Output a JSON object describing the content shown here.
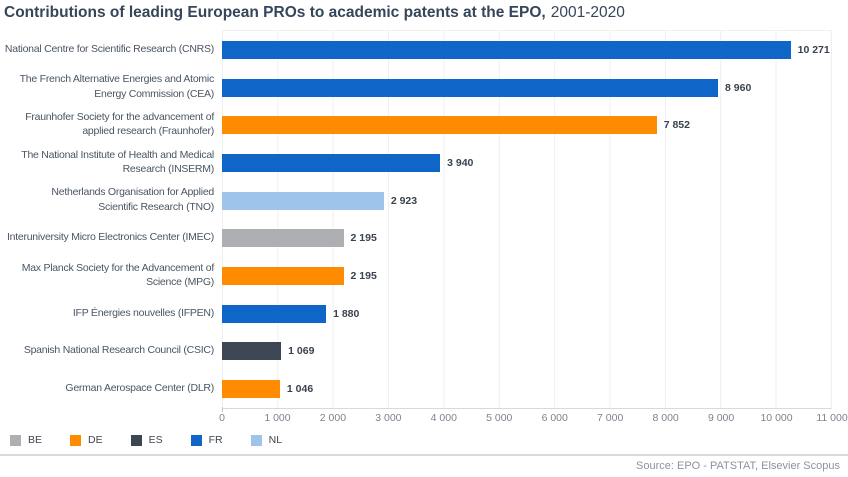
{
  "title": {
    "main": "Contributions of leading European PROs to academic patents at the EPO,",
    "period": "2001-2020"
  },
  "source": "Source: EPO - PATSTAT, Elsevier Scopus",
  "colors": {
    "BE": "#ADAFB2",
    "DE": "#FF8C00",
    "ES": "#3D4653",
    "FR": "#1065C8",
    "NL": "#9EC4EB"
  },
  "legend": [
    "BE",
    "DE",
    "ES",
    "FR",
    "NL"
  ],
  "chart_data": {
    "type": "bar",
    "orientation": "horizontal",
    "title": "Contributions of leading European PROs to academic patents at the EPO, 2001-2020",
    "xlabel": "",
    "ylabel": "",
    "xlim": [
      0,
      11000
    ],
    "x_ticks": [
      0,
      1000,
      2000,
      3000,
      4000,
      5000,
      6000,
      7000,
      8000,
      9000,
      10000,
      11000
    ],
    "x_tick_labels": [
      "0",
      "1 000",
      "2 000",
      "3 000",
      "4 000",
      "5 000",
      "6 000",
      "7 000",
      "8 000",
      "9 000",
      "10 000",
      "11 000"
    ],
    "grid": "vertical",
    "legend_position": "bottom-left",
    "rows": [
      {
        "label": "National Centre for Scientific Research (CNRS)",
        "country": "FR",
        "value": 10271,
        "value_label": "10 271"
      },
      {
        "label": "The French Alternative Energies and Atomic\nEnergy Commission (CEA)",
        "country": "FR",
        "value": 8960,
        "value_label": "8 960"
      },
      {
        "label": "Fraunhofer Society for the advancement of\napplied research (Fraunhofer)",
        "country": "DE",
        "value": 7852,
        "value_label": "7 852"
      },
      {
        "label": "The National Institute of Health and Medical\nResearch (INSERM)",
        "country": "FR",
        "value": 3940,
        "value_label": "3 940"
      },
      {
        "label": "Netherlands Organisation for Applied\nScientific Research (TNO)",
        "country": "NL",
        "value": 2923,
        "value_label": "2 923"
      },
      {
        "label": "Interuniversity Micro Electronics Center (IMEC)",
        "country": "BE",
        "value": 2195,
        "value_label": "2 195"
      },
      {
        "label": "Max Planck Society for the Advancement of\nScience (MPG)",
        "country": "DE",
        "value": 2195,
        "value_label": "2 195"
      },
      {
        "label": "IFP Énergies nouvelles (IFPEN)",
        "country": "FR",
        "value": 1880,
        "value_label": "1 880"
      },
      {
        "label": "Spanish National Research Council (CSIC)",
        "country": "ES",
        "value": 1069,
        "value_label": "1 069"
      },
      {
        "label": "German Aerospace Center (DLR)",
        "country": "DE",
        "value": 1046,
        "value_label": "1 046"
      }
    ]
  }
}
